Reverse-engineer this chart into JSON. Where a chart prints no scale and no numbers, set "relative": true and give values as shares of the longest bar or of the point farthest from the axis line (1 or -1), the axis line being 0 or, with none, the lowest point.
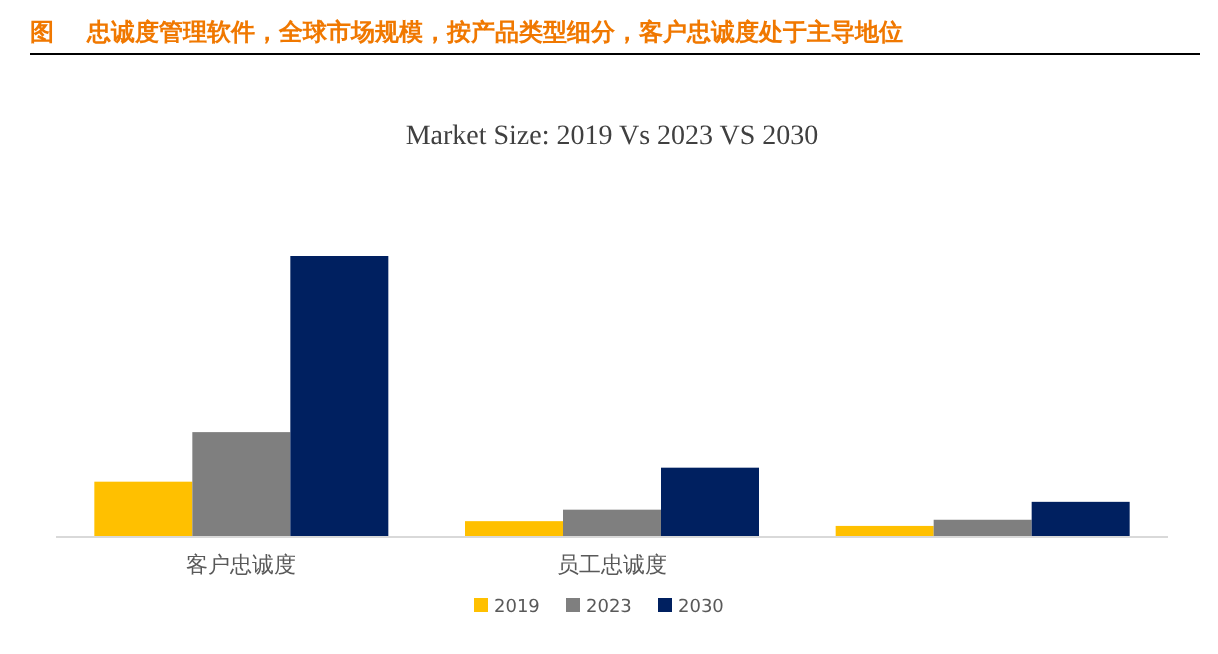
{
  "chart_data": {
    "type": "bar",
    "title": "图    忠诚度管理软件，全球市场规模，按产品类型细分，客户忠诚度处于主导地位",
    "subtitle": "Market Size: 2019 Vs 2023 VS 2030",
    "categories": [
      "客户忠诚度",
      "员工忠诚度",
      null
    ],
    "relative": true,
    "legend": "bottom",
    "series": [
      {
        "name": "2019",
        "color": "#ffc000",
        "values": [
          0.194,
          0.053,
          0.036
        ]
      },
      {
        "name": "2023",
        "color": "#7f7f7f",
        "values": [
          0.371,
          0.094,
          0.058
        ]
      },
      {
        "name": "2030",
        "color": "#002060",
        "values": [
          1,
          0.244,
          0.122
        ]
      }
    ]
  }
}
